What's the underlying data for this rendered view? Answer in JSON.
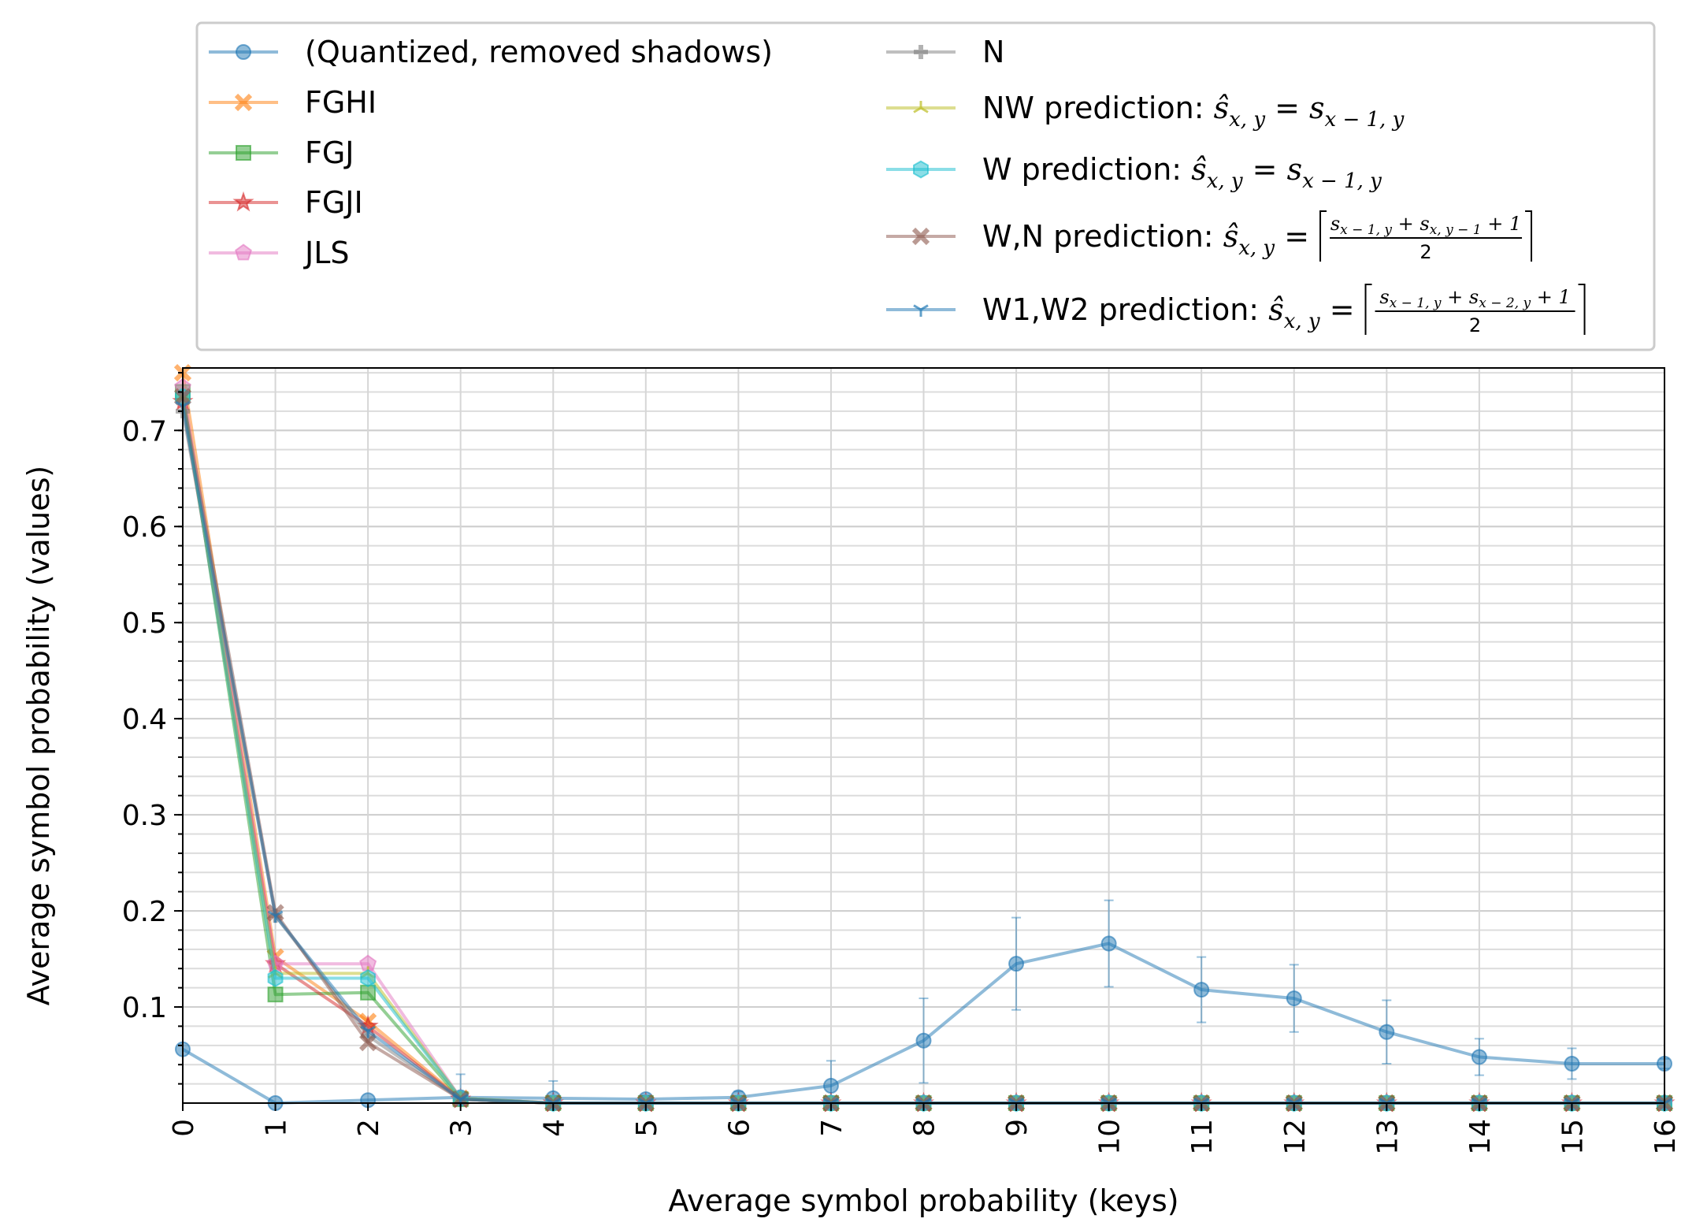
{
  "chart_data": {
    "type": "line",
    "xlabel": "Average symbol probability (keys)",
    "ylabel": "Average symbol probability (values)",
    "xlim": [
      0,
      16
    ],
    "ylim": [
      0,
      0.765
    ],
    "x_ticks": [
      "0",
      "1",
      "2",
      "3",
      "4",
      "5",
      "6",
      "7",
      "8",
      "9",
      "10",
      "11",
      "12",
      "13",
      "14",
      "15",
      "16"
    ],
    "y_ticks": [
      "0.1",
      "0.2",
      "0.3",
      "0.4",
      "0.5",
      "0.6",
      "0.7"
    ],
    "y_tick_values": [
      0.1,
      0.2,
      0.3,
      0.4,
      0.5,
      0.6,
      0.7
    ],
    "grid": true,
    "legend_position": "top, above plot, two columns",
    "x": [
      0,
      1,
      2,
      3,
      4,
      5,
      6,
      7,
      8,
      9,
      10,
      11,
      12,
      13,
      14,
      15,
      16
    ],
    "series": [
      {
        "name": "(Quantized, removed shadows)",
        "color": "#1f77b4",
        "marker": "circle",
        "values": [
          0.056,
          0.0,
          0.003,
          0.006,
          0.005,
          0.004,
          0.006,
          0.018,
          0.065,
          0.145,
          0.166,
          0.118,
          0.109,
          0.074,
          0.048,
          0.041,
          0.041
        ],
        "errors": [
          0,
          0,
          0,
          0.024,
          0.018,
          0.004,
          0.006,
          0.026,
          0.044,
          0.048,
          0.045,
          0.034,
          0.035,
          0.033,
          0.019,
          0.016,
          0.005
        ]
      },
      {
        "name": "FGHI",
        "color": "#ff7f0e",
        "marker": "x-filled",
        "values": [
          0.76,
          0.152,
          0.085,
          0.005,
          0,
          0,
          0,
          0,
          0,
          0,
          0,
          0,
          0,
          0,
          0,
          0,
          0
        ]
      },
      {
        "name": "FGJ",
        "color": "#2ca02c",
        "marker": "square",
        "values": [
          0.74,
          0.113,
          0.115,
          0.004,
          0,
          0,
          0,
          0,
          0,
          0,
          0,
          0,
          0,
          0,
          0,
          0,
          0
        ]
      },
      {
        "name": "FGJI",
        "color": "#d62728",
        "marker": "star",
        "values": [
          0.73,
          0.145,
          0.08,
          0.004,
          0,
          0,
          0,
          0,
          0,
          0,
          0,
          0,
          0,
          0,
          0,
          0,
          0
        ]
      },
      {
        "name": "JLS",
        "color": "#e377c2",
        "marker": "pentagon",
        "values": [
          0.745,
          0.145,
          0.145,
          0.005,
          0,
          0,
          0,
          0,
          0,
          0,
          0,
          0,
          0,
          0,
          0,
          0,
          0
        ]
      },
      {
        "name": "N",
        "color": "#7f7f7f",
        "marker": "plus",
        "values": [
          0.72,
          0.195,
          0.07,
          0.004,
          0,
          0,
          0,
          0,
          0,
          0,
          0,
          0,
          0,
          0,
          0,
          0,
          0
        ]
      },
      {
        "name": "NW prediction: ŝx,y = sx−1,y",
        "color": "#bcbd22",
        "marker": "tri-up",
        "values": [
          0.735,
          0.135,
          0.135,
          0.005,
          0,
          0,
          0,
          0,
          0,
          0,
          0,
          0,
          0,
          0,
          0,
          0,
          0
        ]
      },
      {
        "name": "W prediction: ŝx,y = sx−1,y",
        "color": "#17becf",
        "marker": "hexagon",
        "values": [
          0.735,
          0.13,
          0.13,
          0.005,
          0,
          0,
          0,
          0,
          0,
          0,
          0,
          0,
          0,
          0,
          0,
          0,
          0
        ]
      },
      {
        "name": "W,N prediction: ŝx,y = ⌈(sx−1,y + sx,y−1 + 1)/2⌉",
        "color": "#8c564b",
        "marker": "x-filled",
        "values": [
          0.735,
          0.198,
          0.063,
          0.004,
          0,
          0,
          0,
          0,
          0,
          0,
          0,
          0,
          0,
          0,
          0,
          0,
          0
        ]
      },
      {
        "name": "W1,W2 prediction: ŝx,y = ⌈(sx−1,y + sx−2,y + 1)/2⌉",
        "color": "#1f77b4",
        "marker": "tri-down",
        "values": [
          0.725,
          0.195,
          0.075,
          0.004,
          0,
          0,
          0,
          0,
          0,
          0,
          0,
          0,
          0,
          0,
          0,
          0,
          0
        ]
      }
    ]
  },
  "legend": {
    "items": [
      {
        "label": "(Quantized, removed shadows)"
      },
      {
        "label": "FGHI"
      },
      {
        "label": "FGJ"
      },
      {
        "label": "FGJI"
      },
      {
        "label": "JLS"
      },
      {
        "label": "N"
      },
      {
        "label": "NW prediction: ",
        "math": {
          "lhs": "ŝ",
          "lhs_sub": "x, y",
          "rhs": "s",
          "rhs_sub": "x − 1, y"
        }
      },
      {
        "label": "W prediction: ",
        "math": {
          "lhs": "ŝ",
          "lhs_sub": "x, y",
          "rhs": "s",
          "rhs_sub": "x − 1, y"
        }
      },
      {
        "label": "W,N prediction: ",
        "math": {
          "lhs": "ŝ",
          "lhs_sub": "x, y",
          "num": "s",
          "num_sub1": "x − 1, y",
          "num_mid": " + s",
          "num_sub2": "x, y − 1",
          "num_tail": " + 1",
          "den": "2"
        }
      },
      {
        "label": "W1,W2 prediction: ",
        "math": {
          "lhs": "ŝ",
          "lhs_sub": "x, y",
          "num": "s",
          "num_sub1": "x − 1, y",
          "num_mid": " + s",
          "num_sub2": "x − 2, y",
          "num_tail": " + 1",
          "den": "2"
        }
      }
    ]
  }
}
